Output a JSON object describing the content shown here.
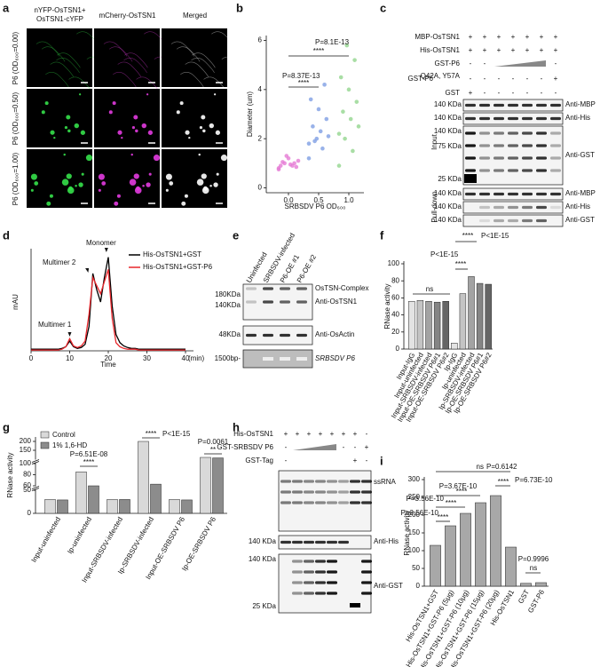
{
  "panel_labels": [
    "a",
    "b",
    "c",
    "d",
    "e",
    "f",
    "g",
    "h",
    "i"
  ],
  "fig_a": {
    "headers": [
      [
        "nYFP-OsTSN1+",
        "OsTSN1-cYFP"
      ],
      [
        "mCherry-OsTSN1"
      ],
      [
        "Merged"
      ]
    ],
    "rows": [
      "P6 (OD₆₀₀=0.00)",
      "P6 (OD₆₀₀=0.50)",
      "P6 (OD₆₀₀=1.00)"
    ]
  },
  "chart_data": [
    {
      "type": "strip",
      "ylabel": "Diameter (um)",
      "xlabel": "SRBSDV P6 OD₆₀₀",
      "categories": [
        "0.0",
        "0.5",
        "1.0"
      ],
      "series": [
        {
          "color": "#e57ad4",
          "values": [
            0.8,
            0.9,
            1.0,
            1.1,
            0.95,
            1.05,
            0.85,
            1.2,
            0.9,
            1.0,
            1.3,
            0.75
          ]
        },
        {
          "color": "#7f9fe3",
          "values": [
            1.2,
            1.6,
            1.9,
            2.1,
            2.3,
            2.5,
            2.8,
            3.2,
            3.6,
            4.2,
            2.0,
            1.8
          ]
        },
        {
          "color": "#93d68f",
          "values": [
            0.9,
            1.5,
            2.0,
            2.5,
            2.8,
            3.1,
            3.5,
            4.0,
            4.5,
            5.2,
            5.8,
            2.2
          ]
        }
      ],
      "ylim": [
        -0.2,
        6.2
      ],
      "yticks": [
        0,
        2,
        4,
        6
      ],
      "annotations": [
        "P=8.37E-13",
        "****",
        "P=8.1E-13",
        "****"
      ]
    },
    {
      "type": "line",
      "xlabel": "Time",
      "xunit": "(min)",
      "ylabel": "mAU",
      "x": [
        0,
        1,
        2,
        3,
        4,
        5,
        6,
        7,
        8,
        9,
        10,
        11,
        12,
        13,
        14,
        15,
        16,
        17,
        18,
        19,
        20,
        21,
        22,
        23,
        24,
        25,
        26,
        27,
        28,
        29,
        30,
        31,
        32,
        33,
        34,
        35,
        36,
        37,
        38,
        39,
        40
      ],
      "series": [
        {
          "name": "His-OsTSN1+GST",
          "color": "#000000",
          "values": [
            2,
            2,
            2,
            2,
            2,
            2,
            2,
            2,
            3,
            5,
            12,
            5,
            3,
            4,
            8,
            30,
            95,
            75,
            60,
            90,
            115,
            55,
            20,
            10,
            6,
            4,
            3,
            3,
            2,
            2,
            2,
            2,
            2,
            2,
            2,
            2,
            2,
            2,
            2,
            2,
            2
          ]
        },
        {
          "name": "His-OsTSN1+GST-P6",
          "color": "#e8262b",
          "values": [
            1,
            1,
            1,
            1,
            1,
            1,
            1,
            1,
            2,
            5,
            15,
            6,
            4,
            6,
            12,
            45,
            90,
            80,
            70,
            85,
            100,
            40,
            10,
            5,
            3,
            2,
            2,
            2,
            1,
            1,
            1,
            1,
            1,
            1,
            1,
            1,
            1,
            1,
            1,
            1,
            1
          ]
        }
      ],
      "xlim": [
        0,
        40
      ],
      "xticks": [
        0,
        10,
        20,
        30,
        40
      ],
      "ylim": [
        0,
        120
      ],
      "annotations": [
        "Multimer 1",
        "Multimer 2",
        "Monomer"
      ]
    },
    {
      "type": "bar",
      "ylabel": "RNase activity",
      "categories": [
        "Input-IgG",
        "Input-uninfected",
        "Input-SRBSDV-infected",
        "Input-OE-SRBSDV P6#1",
        "Input-OE-SRBSDV P6#2",
        "Ip-IgG",
        "Ip-uninfected",
        "Ip-SRBSDV-infected",
        "Ip-OE-SRBSDV P6#1",
        "Ip-OE-SRBSDV P6#2"
      ],
      "values": [
        56,
        57,
        56,
        55,
        56,
        7,
        65,
        85,
        77,
        76
      ],
      "colors": [
        "#e3e3e3",
        "#c4c4c4",
        "#a3a3a3",
        "#858585",
        "#666666",
        "#e3e3e3",
        "#c4c4c4",
        "#a3a3a3",
        "#858585",
        "#666666"
      ],
      "ylim": [
        0,
        100
      ],
      "yticks": [
        0,
        20,
        40,
        60,
        80,
        100
      ],
      "annotations": [
        "ns",
        "P<1E-15",
        "****",
        "****",
        "P<1E-15"
      ]
    },
    {
      "type": "grouped-bar",
      "ylabel": "RNase activity",
      "categories": [
        "Input-uninfected",
        "Ip-uninfected",
        "Input-SRBSDV-infected",
        "Ip-SRBSDV-infected",
        "Input-OE-SRBSDV P6",
        "Ip-OE-SRBSDV P6"
      ],
      "series": [
        {
          "name": "Control",
          "color": "#d9d9d9",
          "values": [
            30,
            85,
            30,
            200,
            30,
            110
          ]
        },
        {
          "name": "1% 1,6-HD",
          "color": "#8c8c8c",
          "values": [
            29,
            60,
            30,
            63,
            29,
            107
          ]
        }
      ],
      "ylim_segments": [
        [
          0,
          50
        ],
        [
          60,
          100
        ],
        [
          100,
          210
        ]
      ],
      "yticks": [
        0,
        50,
        60,
        80,
        100,
        150,
        200
      ],
      "annotations": [
        "P=6.51E-08",
        "****",
        "****",
        "P<1E-15",
        "P=0.0061",
        "**"
      ]
    },
    {
      "type": "bar",
      "ylabel": "RNase activity",
      "categories": [
        "His-OsTSN1+GST",
        "His-OsTSN1+GST-P6 (5μg)",
        "His-OsTSN1+GST-P6 (10μg)",
        "His-OsTSN1+GST-P6 (15μg)",
        "His-OsTSN1+GST-P6 (20μg)",
        "His-OsTSN1",
        "GST",
        "GST-P6"
      ],
      "values": [
        115,
        170,
        205,
        235,
        255,
        110,
        8,
        10
      ],
      "colors": [
        "#a8a8a8",
        "#a8a8a8",
        "#a8a8a8",
        "#a8a8a8",
        "#a8a8a8",
        "#a8a8a8",
        "#a8a8a8",
        "#a8a8a8"
      ],
      "ylim": [
        0,
        300
      ],
      "yticks": [
        0,
        50,
        100,
        150,
        200,
        250,
        300
      ],
      "annotations": [
        "P=3.56E-10",
        "****",
        "P=3.56E-10",
        "****",
        "P=3.67E-10",
        "****",
        "ns",
        "P=0.6142",
        "****",
        "P=6.73E-10",
        "P=0.9996",
        "ns"
      ]
    }
  ],
  "blot_c": {
    "rows": [
      {
        "name": "MBP-OsTSN1",
        "lanes": [
          "+",
          "+",
          "+",
          "+",
          "+",
          "+",
          "+"
        ]
      },
      {
        "name": "His-OsTSN1",
        "lanes": [
          "+",
          "+",
          "+",
          "+",
          "+",
          "+",
          "+"
        ]
      },
      {
        "name": "GST-P6",
        "lanes": [
          "-",
          "-",
          null,
          null,
          null,
          null,
          "-"
        ]
      },
      {
        "name": "GST-P6",
        "sup": "Q42A, Y57A",
        "lanes": [
          "-",
          "-",
          "-",
          "-",
          "-",
          "-",
          "+"
        ]
      },
      {
        "name": "GST",
        "lanes": [
          "+",
          "-",
          "-",
          "-",
          "-",
          "-",
          "-"
        ]
      }
    ],
    "markers": [
      "140 KDa",
      "140 KDa",
      "140 KDa",
      "75 KDa",
      "25 KDa",
      "140 KDa",
      "140 KDa",
      "140 KDa"
    ],
    "antibodies": [
      "Anti-MBP",
      "Anti-His",
      "Anti-GST",
      "Anti-MBP",
      "Anti-His",
      "Anti-GST"
    ],
    "sections": [
      "Input",
      "Pull-down"
    ]
  },
  "blot_e": {
    "lanes": [
      "Uninfected",
      "SRBSDV-infected",
      "P6-OE #1",
      "P6-OE #2"
    ],
    "markers": [
      "180KDa",
      "140KDa",
      "48KDa",
      "1500bp-"
    ],
    "labels": [
      "OsTSN-Complex",
      "Anti-OsTSN1",
      "Anti-OsActin",
      "SRBSDV P6"
    ]
  },
  "blot_h": {
    "rows": [
      {
        "name": "His-OsTSN1",
        "lanes": [
          "+",
          "+",
          "+",
          "+",
          "+",
          "+",
          "+",
          "-"
        ]
      },
      {
        "name": "GST-SRBSDV P6",
        "lanes": [
          "-",
          null,
          null,
          null,
          null,
          "-",
          "-",
          "+"
        ]
      },
      {
        "name": "GST-Tag",
        "lanes": [
          "-",
          null,
          null,
          null,
          null,
          null,
          "+",
          "-"
        ]
      }
    ],
    "markers": [
      "140 KDa",
      "140 KDa",
      "25 KDa"
    ],
    "labels": [
      "ssRNA",
      "Anti-His",
      "Anti-GST"
    ]
  }
}
